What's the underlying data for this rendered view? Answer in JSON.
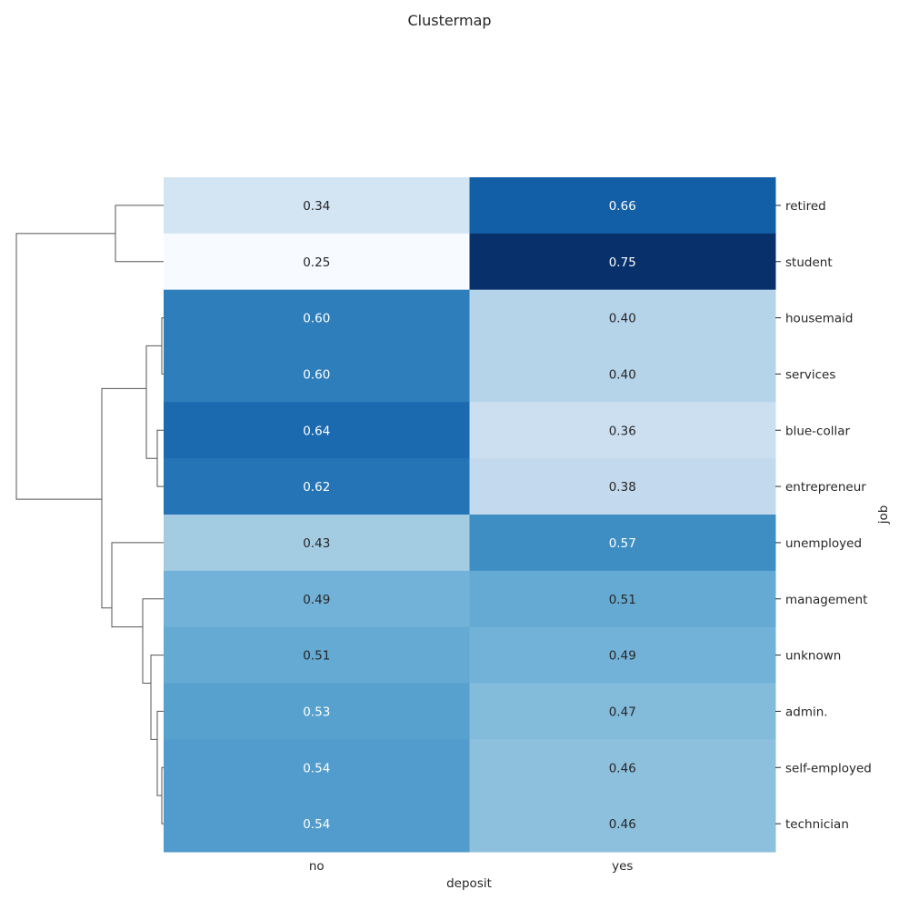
{
  "chart_data": {
    "type": "heatmap",
    "title": "Clustermap",
    "xlabel": "deposit",
    "ylabel": "job",
    "columns": [
      "no",
      "yes"
    ],
    "rows": [
      "retired",
      "student",
      "housemaid",
      "services",
      "blue-collar",
      "entrepreneur",
      "unemployed",
      "management",
      "unknown",
      "admin.",
      "self-employed",
      "technician"
    ],
    "values": [
      [
        0.34,
        0.66
      ],
      [
        0.25,
        0.75
      ],
      [
        0.6,
        0.4
      ],
      [
        0.6,
        0.4
      ],
      [
        0.64,
        0.36
      ],
      [
        0.62,
        0.38
      ],
      [
        0.43,
        0.57
      ],
      [
        0.49,
        0.51
      ],
      [
        0.51,
        0.49
      ],
      [
        0.53,
        0.47
      ],
      [
        0.54,
        0.46
      ],
      [
        0.54,
        0.46
      ]
    ],
    "labels": [
      [
        "0.34",
        "0.66"
      ],
      [
        "0.25",
        "0.75"
      ],
      [
        "0.60",
        "0.40"
      ],
      [
        "0.60",
        "0.40"
      ],
      [
        "0.64",
        "0.36"
      ],
      [
        "0.62",
        "0.38"
      ],
      [
        "0.43",
        "0.57"
      ],
      [
        "0.49",
        "0.51"
      ],
      [
        "0.51",
        "0.49"
      ],
      [
        "0.53",
        "0.47"
      ],
      [
        "0.54",
        "0.46"
      ],
      [
        "0.54",
        "0.46"
      ]
    ],
    "colormap": "Blues",
    "value_range": [
      0.25,
      0.75
    ],
    "row_dendrogram": true,
    "col_dendrogram": false
  }
}
